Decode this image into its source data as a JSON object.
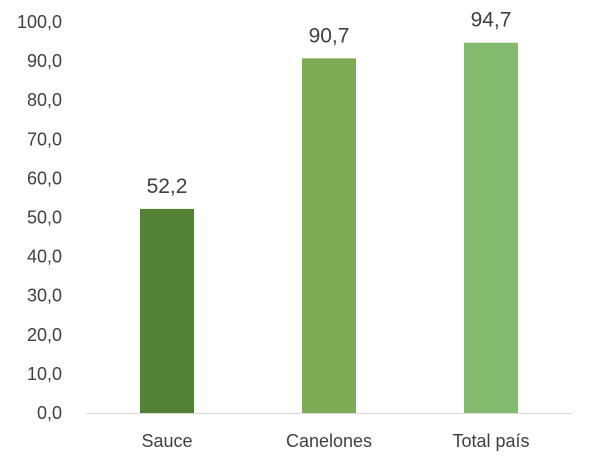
{
  "chart_data": {
    "type": "bar",
    "categories": [
      "Sauce",
      "Canelones",
      "Total país"
    ],
    "values": [
      52.2,
      90.7,
      94.7
    ],
    "value_labels": [
      "52,2",
      "90,7",
      "94,7"
    ],
    "ylim": [
      0,
      100
    ],
    "yticks": [
      "0,0",
      "10,0",
      "20,0",
      "30,0",
      "40,0",
      "50,0",
      "60,0",
      "70,0",
      "80,0",
      "90,0",
      "100,0"
    ],
    "bar_colors": [
      "#538135",
      "#7daa55",
      "#84ba6e"
    ],
    "grid": false,
    "legend": "none"
  }
}
